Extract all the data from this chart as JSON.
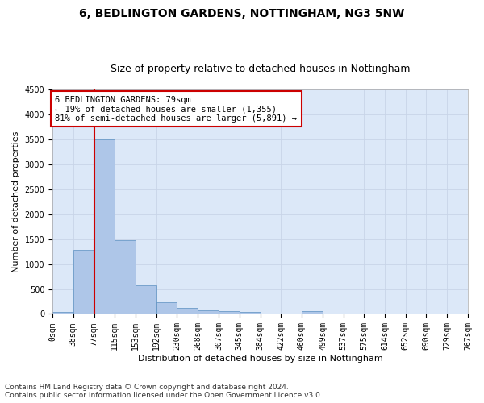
{
  "title": "6, BEDLINGTON GARDENS, NOTTINGHAM, NG3 5NW",
  "subtitle": "Size of property relative to detached houses in Nottingham",
  "xlabel": "Distribution of detached houses by size in Nottingham",
  "ylabel": "Number of detached properties",
  "bin_edges": [
    0,
    38,
    77,
    115,
    153,
    192,
    230,
    268,
    307,
    345,
    384,
    422,
    460,
    499,
    537,
    575,
    614,
    652,
    690,
    729,
    767
  ],
  "bar_heights": [
    40,
    1280,
    3500,
    1480,
    580,
    240,
    115,
    80,
    55,
    40,
    5,
    5,
    60,
    5,
    0,
    0,
    0,
    0,
    0,
    0
  ],
  "bar_color": "#aec6e8",
  "bar_edge_color": "#5a8fc0",
  "grid_color": "#c8d4e8",
  "background_color": "#dce8f8",
  "red_line_x": 77,
  "annotation_text": "6 BEDLINGTON GARDENS: 79sqm\n← 19% of detached houses are smaller (1,355)\n81% of semi-detached houses are larger (5,891) →",
  "annotation_box_color": "#ffffff",
  "annotation_border_color": "#cc0000",
  "ylim": [
    0,
    4500
  ],
  "yticks": [
    0,
    500,
    1000,
    1500,
    2000,
    2500,
    3000,
    3500,
    4000,
    4500
  ],
  "tick_labels": [
    "0sqm",
    "38sqm",
    "77sqm",
    "115sqm",
    "153sqm",
    "192sqm",
    "230sqm",
    "268sqm",
    "307sqm",
    "345sqm",
    "384sqm",
    "422sqm",
    "460sqm",
    "499sqm",
    "537sqm",
    "575sqm",
    "614sqm",
    "652sqm",
    "690sqm",
    "729sqm",
    "767sqm"
  ],
  "footer_text": "Contains HM Land Registry data © Crown copyright and database right 2024.\nContains public sector information licensed under the Open Government Licence v3.0.",
  "title_fontsize": 10,
  "subtitle_fontsize": 9,
  "axis_label_fontsize": 8,
  "tick_fontsize": 7,
  "annotation_fontsize": 7.5,
  "footer_fontsize": 6.5
}
